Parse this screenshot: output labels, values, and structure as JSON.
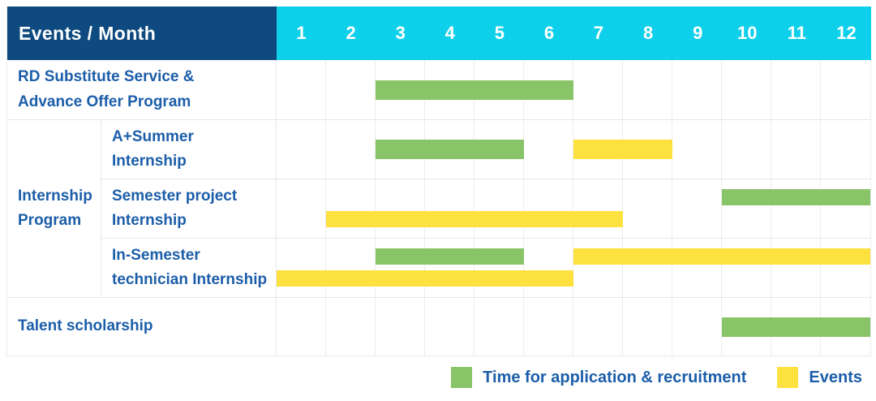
{
  "colors": {
    "header_bg": "#0e4a7f",
    "months_bg": "#0fd0ea",
    "green": "#8ac468",
    "yellow": "#fde13e",
    "label_text": "#1c5ea9",
    "grid_line": "#ededed"
  },
  "header": {
    "title": "Events / Month",
    "months": [
      "1",
      "2",
      "3",
      "4",
      "5",
      "6",
      "7",
      "8",
      "9",
      "10",
      "11",
      "12"
    ]
  },
  "group_label": "Internship Program",
  "rows": [
    {
      "id": "rd-substitute-service",
      "label_lines": [
        "RD Substitute Service &",
        "Advance Offer Program"
      ],
      "group": null,
      "bars": [
        {
          "type": "green",
          "lane": "center",
          "start_month": 3,
          "end_month": 6
        }
      ]
    },
    {
      "id": "a-plus-summer-internship",
      "label_lines": [
        "A+Summer",
        "Internship"
      ],
      "group": "Internship Program",
      "bars": [
        {
          "type": "green",
          "lane": "center",
          "start_month": 3,
          "end_month": 5
        },
        {
          "type": "yellow",
          "lane": "center",
          "start_month": 7,
          "end_month": 8
        }
      ]
    },
    {
      "id": "semester-project-internship",
      "label_lines": [
        "Semester project",
        "Internship"
      ],
      "group": "Internship Program",
      "bars": [
        {
          "type": "green",
          "lane": "top",
          "start_month": 10,
          "end_month": 12
        },
        {
          "type": "yellow",
          "lane": "bottom",
          "start_month": 2,
          "end_month": 7
        }
      ]
    },
    {
      "id": "in-semester-technician-internship",
      "label_lines": [
        "In-Semester",
        "technician Internship"
      ],
      "group": "Internship Program",
      "bars": [
        {
          "type": "green",
          "lane": "top",
          "start_month": 3,
          "end_month": 5
        },
        {
          "type": "yellow",
          "lane": "top",
          "start_month": 7,
          "end_month": 12
        },
        {
          "type": "yellow",
          "lane": "bottom",
          "start_month": 1,
          "end_month": 6
        }
      ]
    },
    {
      "id": "talent-scholarship",
      "label_lines": [
        "Talent scholarship"
      ],
      "group": null,
      "bars": [
        {
          "type": "green",
          "lane": "center",
          "start_month": 10,
          "end_month": 12
        }
      ]
    }
  ],
  "legend": [
    {
      "key": "green",
      "label": "Time for application & recruitment"
    },
    {
      "key": "yellow",
      "label": "Events"
    }
  ],
  "chart_data": {
    "type": "table",
    "subtype": "gantt",
    "title": "Events / Month",
    "xlabel": "Month",
    "x_ticks": [
      1,
      2,
      3,
      4,
      5,
      6,
      7,
      8,
      9,
      10,
      11,
      12
    ],
    "x_range": [
      1,
      12
    ],
    "grid": true,
    "legend_position": "bottom-right",
    "legend": {
      "green": "Time for application & recruitment",
      "yellow": "Events"
    },
    "items": [
      {
        "event": "RD Substitute Service & Advance Offer Program",
        "group": null,
        "spans": [
          {
            "category": "Time for application & recruitment",
            "color": "green",
            "months": [
              3,
              6
            ]
          }
        ]
      },
      {
        "event": "A+Summer Internship",
        "group": "Internship Program",
        "spans": [
          {
            "category": "Time for application & recruitment",
            "color": "green",
            "months": [
              3,
              5
            ]
          },
          {
            "category": "Events",
            "color": "yellow",
            "months": [
              7,
              8
            ]
          }
        ]
      },
      {
        "event": "Semester project Internship",
        "group": "Internship Program",
        "spans": [
          {
            "category": "Time for application & recruitment",
            "color": "green",
            "months": [
              10,
              12
            ]
          },
          {
            "category": "Events",
            "color": "yellow",
            "months": [
              2,
              7
            ]
          }
        ]
      },
      {
        "event": "In-Semester technician Internship",
        "group": "Internship Program",
        "spans": [
          {
            "category": "Time for application & recruitment",
            "color": "green",
            "months": [
              3,
              5
            ]
          },
          {
            "category": "Events",
            "color": "yellow",
            "months": [
              7,
              12
            ]
          },
          {
            "category": "Events",
            "color": "yellow",
            "months": [
              1,
              6
            ]
          }
        ]
      },
      {
        "event": "Talent scholarship",
        "group": null,
        "spans": [
          {
            "category": "Time for application & recruitment",
            "color": "green",
            "months": [
              10,
              12
            ]
          }
        ]
      }
    ]
  }
}
